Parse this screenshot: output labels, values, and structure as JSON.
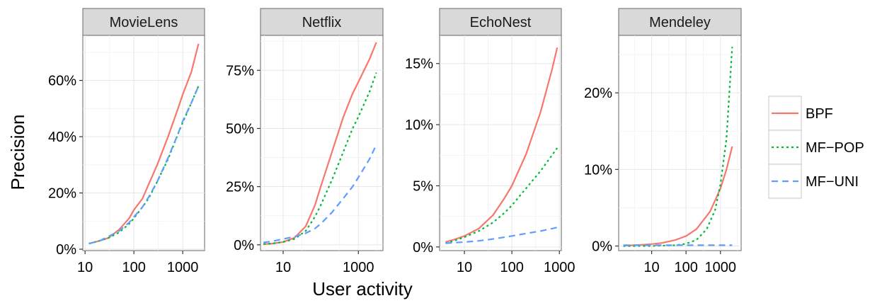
{
  "chart_data": {
    "type": "line",
    "xlabel": "User activity",
    "ylabel": "Precision",
    "x_scale": "log",
    "grid": true,
    "legend": {
      "placement": "right",
      "entries": [
        {
          "name": "BPF",
          "color": "#F8766D",
          "dash": "solid"
        },
        {
          "name": "MF−POP",
          "color": "#00BA38",
          "dash": "dotted"
        },
        {
          "name": "MF−UNI",
          "color": "#619CFF",
          "dash": "dashed"
        }
      ]
    },
    "panels": [
      {
        "title": "MovieLens",
        "xlim": [
          9,
          2800
        ],
        "ylim": [
          -0.5,
          76
        ],
        "x_ticks": [
          {
            "v": 10,
            "label": "10"
          },
          {
            "v": 100,
            "label": "100"
          },
          {
            "v": 1000,
            "label": "1000"
          }
        ],
        "y_ticks": [
          {
            "v": 0,
            "label": "0%"
          },
          {
            "v": 20,
            "label": "20%"
          },
          {
            "v": 40,
            "label": "40%"
          },
          {
            "v": 60,
            "label": "60%"
          }
        ],
        "series": [
          {
            "name": "BPF",
            "x": [
              12,
              20,
              30,
              50,
              80,
              100,
              150,
              200,
              300,
              500,
              800,
              1000,
              1500,
              2100
            ],
            "y": [
              2,
              3,
              4,
              7,
              11,
              14,
              18,
              23,
              30,
              40,
              50,
              55,
              63,
              73
            ]
          },
          {
            "name": "MF−POP",
            "x": [
              12,
              20,
              30,
              50,
              80,
              100,
              150,
              200,
              300,
              500,
              800,
              1000,
              1500,
              2100
            ],
            "y": [
              2,
              3,
              4,
              6,
              9,
              11,
              15,
              18,
              24,
              32,
              41,
              45,
              52,
              58
            ]
          },
          {
            "name": "MF−UNI",
            "x": [
              12,
              20,
              30,
              50,
              80,
              100,
              150,
              200,
              300,
              500,
              800,
              1000,
              1500,
              2100
            ],
            "y": [
              2,
              3,
              4.5,
              6.5,
              9.5,
              11.5,
              15,
              18.5,
              24,
              32.5,
              41,
              45.5,
              52,
              58
            ]
          }
        ]
      },
      {
        "title": "Netflix",
        "xlim": [
          2.5,
          4500
        ],
        "ylim": [
          -2.5,
          90
        ],
        "x_ticks": [
          {
            "v": 10,
            "label": "10"
          },
          {
            "v": 1000,
            "label": "1000"
          }
        ],
        "y_ticks": [
          {
            "v": 0,
            "label": "0%"
          },
          {
            "v": 25,
            "label": "25%"
          },
          {
            "v": 50,
            "label": "50%"
          },
          {
            "v": 75,
            "label": "75%"
          }
        ],
        "series": [
          {
            "name": "BPF",
            "x": [
              3,
              5,
              10,
              20,
              40,
              70,
              100,
              200,
              400,
              700,
              1000,
              2000,
              3000
            ],
            "y": [
              0.3,
              0.5,
              1.2,
              3,
              8,
              17,
              25,
              40,
              55,
              65,
              70,
              80,
              87
            ]
          },
          {
            "name": "MF−POP",
            "x": [
              3,
              5,
              10,
              20,
              40,
              70,
              100,
              200,
              400,
              700,
              1000,
              2000,
              3000
            ],
            "y": [
              0.3,
              0.5,
              1.2,
              2.5,
              6,
              12,
              17,
              28,
              40,
              50,
              55,
              66,
              74
            ]
          },
          {
            "name": "MF−UNI",
            "x": [
              3,
              5,
              10,
              20,
              40,
              70,
              100,
              200,
              400,
              700,
              1000,
              2000,
              3000
            ],
            "y": [
              1,
              1.5,
              2.5,
              3.5,
              5,
              7,
              9,
              14,
              20,
              25,
              29,
              37,
              43
            ]
          }
        ]
      },
      {
        "title": "EchoNest",
        "xlim": [
          3,
          1100
        ],
        "ylim": [
          -0.3,
          17.3
        ],
        "x_ticks": [
          {
            "v": 10,
            "label": "10"
          },
          {
            "v": 100,
            "label": "100"
          },
          {
            "v": 1000,
            "label": "1000"
          }
        ],
        "y_ticks": [
          {
            "v": 0,
            "label": "0%"
          },
          {
            "v": 5,
            "label": "5%"
          },
          {
            "v": 10,
            "label": "10%"
          },
          {
            "v": 15,
            "label": "15%"
          }
        ],
        "series": [
          {
            "name": "BPF",
            "x": [
              4,
              6,
              10,
              20,
              40,
              70,
              100,
              200,
              400,
              700,
              900
            ],
            "y": [
              0.4,
              0.6,
              0.9,
              1.5,
              2.6,
              4,
              5,
              7.6,
              11,
              14.5,
              16.3
            ]
          },
          {
            "name": "MF−POP",
            "x": [
              4,
              6,
              10,
              20,
              40,
              70,
              100,
              200,
              400,
              700,
              900
            ],
            "y": [
              0.3,
              0.5,
              0.8,
              1.3,
              2,
              2.8,
              3.4,
              4.8,
              6.2,
              7.5,
              8.1
            ]
          },
          {
            "name": "MF−UNI",
            "x": [
              4,
              6,
              10,
              20,
              40,
              70,
              100,
              200,
              400,
              700,
              900
            ],
            "y": [
              0.3,
              0.35,
              0.4,
              0.5,
              0.65,
              0.8,
              0.9,
              1.1,
              1.3,
              1.5,
              1.6
            ]
          }
        ]
      },
      {
        "title": "Mendeley",
        "xlim": [
          1.1,
          4000
        ],
        "ylim": [
          -0.6,
          27.5
        ],
        "x_ticks": [
          {
            "v": 10,
            "label": "10"
          },
          {
            "v": 100,
            "label": "100"
          },
          {
            "v": 1000,
            "label": "1000"
          }
        ],
        "y_ticks": [
          {
            "v": 0,
            "label": "0%"
          },
          {
            "v": 10,
            "label": "10%"
          },
          {
            "v": 20,
            "label": "20%"
          }
        ],
        "series": [
          {
            "name": "BPF",
            "x": [
              1.5,
              3,
              5,
              10,
              20,
              50,
              100,
              200,
              500,
              1000,
              1500,
              2200
            ],
            "y": [
              0.05,
              0.1,
              0.15,
              0.25,
              0.4,
              0.8,
              1.3,
              2.2,
              4.5,
              7.5,
              10,
              13
            ]
          },
          {
            "name": "MF−POP",
            "x": [
              1.5,
              3,
              5,
              10,
              20,
              50,
              100,
              200,
              400,
              700,
              1000,
              1500,
              2200
            ],
            "y": [
              0,
              0,
              0,
              0,
              0.05,
              0.1,
              0.3,
              0.8,
              2.2,
              4.7,
              8,
              14,
              26
            ]
          },
          {
            "name": "MF−UNI",
            "x": [
              1.5,
              10,
              100,
              1000,
              2200
            ],
            "y": [
              0.1,
              0.1,
              0.1,
              0.1,
              0.1
            ]
          }
        ]
      }
    ]
  }
}
